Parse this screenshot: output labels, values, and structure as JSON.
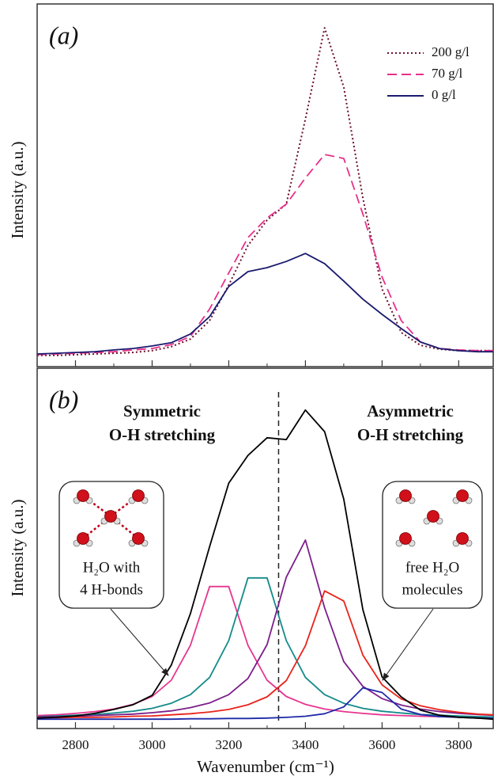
{
  "chart_data": [
    {
      "type": "line",
      "label": "(a)",
      "ylabel": "Intensity (a.u.)",
      "x": [
        2700,
        2750,
        2800,
        2850,
        2900,
        2950,
        3000,
        3050,
        3100,
        3150,
        3200,
        3250,
        3300,
        3350,
        3400,
        3450,
        3500,
        3550,
        3600,
        3650,
        3700,
        3750,
        3800,
        3850,
        3890
      ],
      "series": [
        {
          "name": "200 g/l",
          "color": "#6b0f2a",
          "dash": "dotted",
          "values": [
            3.1,
            3.1,
            3.3,
            3.5,
            3.7,
            3.9,
            4.4,
            5.5,
            7.6,
            12.7,
            22.5,
            33.4,
            40.4,
            44.8,
            68.3,
            93.4,
            77.1,
            46.5,
            21.4,
            9.4,
            5.9,
            4.8,
            4.4,
            4.4,
            4.4
          ]
        },
        {
          "name": "70 g/l",
          "color": "#e8308a",
          "dash": "dashed",
          "values": [
            3.3,
            3.5,
            3.7,
            3.9,
            4.1,
            4.6,
            5.0,
            6.1,
            8.3,
            15.9,
            25.8,
            35.6,
            41.0,
            44.8,
            52.0,
            58.5,
            57.4,
            42.1,
            24.7,
            12.7,
            6.8,
            5.0,
            4.6,
            4.4,
            4.4
          ]
        },
        {
          "name": "0 g/l",
          "color": "#1a1a6e",
          "dash": "solid",
          "values": [
            3.5,
            3.7,
            3.9,
            4.1,
            4.6,
            5.0,
            5.7,
            6.6,
            9.0,
            13.8,
            22.1,
            26.2,
            27.3,
            29.0,
            31.2,
            28.4,
            23.6,
            18.6,
            14.4,
            10.5,
            6.8,
            5.0,
            4.4,
            4.1,
            4.1
          ]
        }
      ],
      "xlim": [
        2700,
        3890
      ],
      "ylim": [
        0,
        100
      ],
      "legend": "upper right"
    },
    {
      "type": "line",
      "label": "(b)",
      "xlabel": "Wavenumber (cm⁻¹)",
      "ylabel": "Intensity (a.u.)",
      "x": [
        2700,
        2750,
        2800,
        2850,
        2900,
        2950,
        3000,
        3050,
        3100,
        3150,
        3200,
        3250,
        3300,
        3350,
        3400,
        3450,
        3500,
        3550,
        3600,
        3650,
        3700,
        3750,
        3800,
        3850,
        3890
      ],
      "series": [
        {
          "color": "#000000",
          "dash": "solid",
          "values": [
            2.9,
            3.1,
            3.5,
            4.2,
            5.3,
            6.6,
            9.2,
            17.6,
            31.9,
            50.5,
            68.1,
            75.8,
            80.7,
            80.2,
            88.4,
            82.4,
            63.7,
            33.0,
            14.3,
            8.8,
            5.1,
            3.7,
            3.1,
            2.9,
            2.6
          ]
        },
        {
          "color": "#e6358f",
          "dash": "solid",
          "values": [
            3.6,
            3.8,
            4.2,
            4.7,
            5.4,
            6.7,
            8.9,
            13.4,
            23.1,
            39.4,
            39.4,
            23.1,
            13.4,
            8.9,
            6.7,
            5.4,
            4.7,
            4.2,
            3.8,
            3.6,
            3.4,
            3.3,
            3.2,
            3.1,
            3.0
          ]
        },
        {
          "color": "#138a8a",
          "dash": "solid",
          "values": [
            3.3,
            3.5,
            3.7,
            3.9,
            4.3,
            4.8,
            5.6,
            7.0,
            9.4,
            14.2,
            24.4,
            41.8,
            41.8,
            24.4,
            14.2,
            9.4,
            7.0,
            5.6,
            4.8,
            4.3,
            3.9,
            3.7,
            3.5,
            3.3,
            3.2
          ]
        },
        {
          "color": "#7b1f8a",
          "dash": "solid",
          "values": [
            3.2,
            3.3,
            3.4,
            3.6,
            3.8,
            4.0,
            4.4,
            4.9,
            5.8,
            7.1,
            9.4,
            13.9,
            23.3,
            42.0,
            52.3,
            33.5,
            18.6,
            11.7,
            8.3,
            6.5,
            5.4,
            4.7,
            4.2,
            3.9,
            3.7
          ]
        },
        {
          "color": "#e8231a",
          "dash": "solid",
          "values": [
            3.0,
            3.0,
            3.1,
            3.1,
            3.2,
            3.4,
            3.5,
            3.8,
            4.1,
            4.6,
            5.3,
            6.6,
            8.8,
            13.3,
            23.0,
            38.2,
            35.4,
            20.4,
            12.1,
            8.2,
            6.3,
            5.2,
            4.5,
            4.0,
            3.8
          ]
        },
        {
          "color": "#1f2aa8",
          "dash": "solid",
          "values": [
            2.6,
            2.6,
            2.6,
            2.6,
            2.6,
            2.6,
            2.6,
            2.6,
            2.7,
            2.7,
            2.8,
            2.8,
            2.9,
            3.1,
            3.4,
            4.1,
            6.0,
            11.3,
            10.0,
            5.4,
            3.9,
            3.3,
            3.1,
            2.9,
            2.8
          ]
        }
      ],
      "vline": 3330,
      "annotations": [
        "Symmetric",
        "O-H stretching",
        "Asymmetric",
        "O-H stretching",
        "H₂O with",
        "4 H-bonds",
        "free H₂O",
        "molecules"
      ],
      "xlim": [
        2700,
        3890
      ],
      "ylim": [
        0,
        100
      ],
      "xticks": [
        2800,
        3000,
        3200,
        3400,
        3600,
        3800
      ],
      "xminorticks": [
        2900,
        3100,
        3300,
        3500,
        3700
      ]
    }
  ]
}
